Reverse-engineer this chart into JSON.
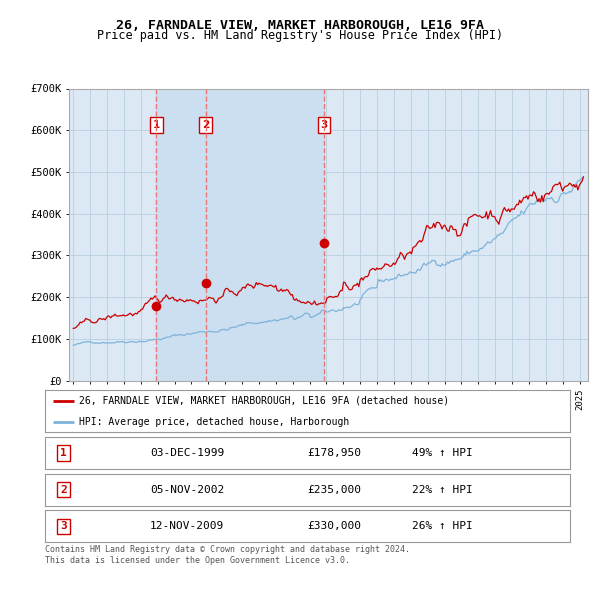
{
  "title": "26, FARNDALE VIEW, MARKET HARBOROUGH, LE16 9FA",
  "subtitle": "Price paid vs. HM Land Registry's House Price Index (HPI)",
  "ylim": [
    0,
    700000
  ],
  "yticks": [
    0,
    100000,
    200000,
    300000,
    400000,
    500000,
    600000,
    700000
  ],
  "ytick_labels": [
    "£0",
    "£100K",
    "£200K",
    "£300K",
    "£400K",
    "£500K",
    "£600K",
    "£700K"
  ],
  "background_color": "#ffffff",
  "plot_bg_color": "#dce9f5",
  "grid_color": "#b8cfe0",
  "purchase_prices": [
    178950,
    235000,
    330000
  ],
  "purchase_labels": [
    "1",
    "2",
    "3"
  ],
  "red_line_color": "#cc0000",
  "blue_line_color": "#7fb3d9",
  "dashed_line_color": "#e87878",
  "shade_color": "#ccdff0",
  "legend_red_label": "26, FARNDALE VIEW, MARKET HARBOROUGH, LE16 9FA (detached house)",
  "legend_blue_label": "HPI: Average price, detached house, Harborough",
  "footer_text": "Contains HM Land Registry data © Crown copyright and database right 2024.\nThis data is licensed under the Open Government Licence v3.0.",
  "table_rows": [
    [
      "1",
      "03-DEC-1999",
      "£178,950",
      "49% ↑ HPI"
    ],
    [
      "2",
      "05-NOV-2002",
      "£235,000",
      "22% ↑ HPI"
    ],
    [
      "3",
      "12-NOV-2009",
      "£330,000",
      "26% ↑ HPI"
    ]
  ]
}
